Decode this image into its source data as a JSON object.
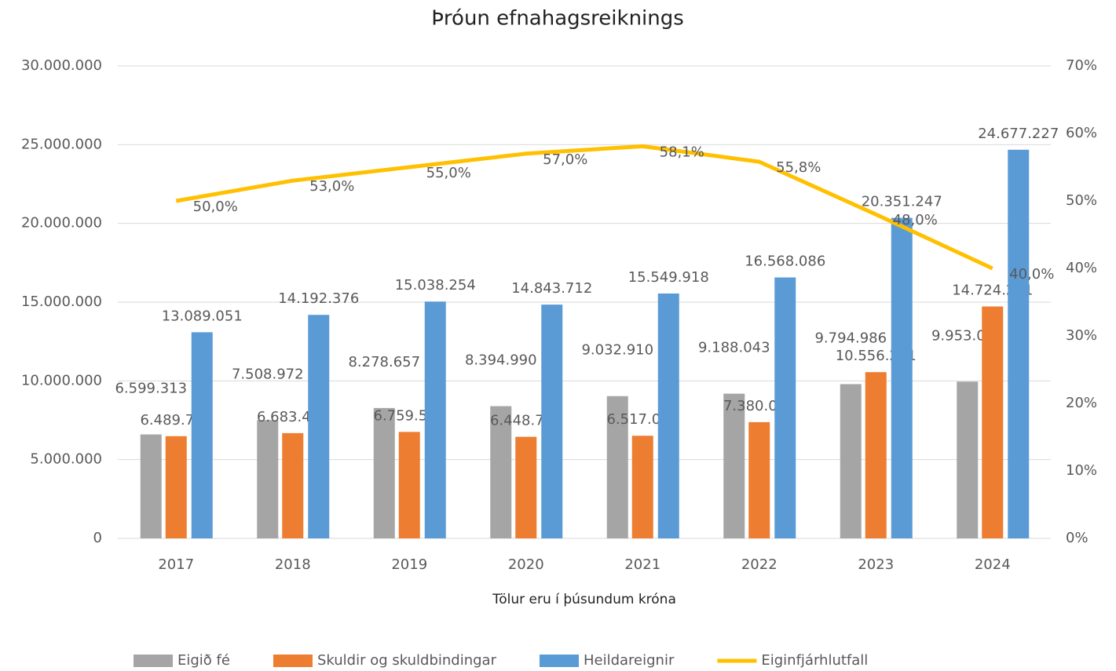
{
  "chart_data": {
    "type": "bar",
    "title": "Þróun efnahagsreiknings",
    "x_label": "Tölur eru í þúsundum króna",
    "categories": [
      "2017",
      "2018",
      "2019",
      "2020",
      "2021",
      "2022",
      "2023",
      "2024"
    ],
    "series": [
      {
        "name": "Eigið fé",
        "type": "bar",
        "color": "#a5a5a5",
        "values": [
          6599313,
          7508972,
          8278657,
          8394990,
          9032910,
          9188043,
          9794986,
          9953006
        ],
        "value_labels": [
          "6.599.313",
          "7.508.972",
          "8.278.657",
          "8.394.990",
          "9.032.910",
          "9.188.043",
          "9.794.986",
          "9.953.006"
        ]
      },
      {
        "name": "Skuldir og skuldbindingar",
        "type": "bar",
        "color": "#ed7d31",
        "values": [
          6489739,
          6683404,
          6759597,
          6448722,
          6517009,
          7380043,
          10556261,
          14724221
        ],
        "value_labels": [
          "6.489.739",
          "6.683.404",
          "6.759.597",
          "6.448.722",
          "6.517.009",
          "7.380.043",
          "10.556.261",
          "14.724.221"
        ]
      },
      {
        "name": "Heildareignir",
        "type": "bar",
        "color": "#5b9bd5",
        "values": [
          13089051,
          14192376,
          15038254,
          14843712,
          15549918,
          16568086,
          20351247,
          24677227
        ],
        "value_labels": [
          "13.089.051",
          "14.192.376",
          "15.038.254",
          "14.843.712",
          "15.549.918",
          "16.568.086",
          "20.351.247",
          "24.677.227"
        ]
      },
      {
        "name": "Eiginfjárhlutfall",
        "type": "line",
        "axis": "y2",
        "color": "#ffc000",
        "values": [
          50.0,
          53.0,
          55.0,
          57.0,
          58.1,
          55.8,
          48.0,
          40.0
        ],
        "value_labels": [
          "50,0%",
          "53,0%",
          "55,0%",
          "57,0%",
          "58,1%",
          "55,8%",
          "48,0%",
          "40,0%"
        ]
      }
    ],
    "ylim": [
      0,
      30000000
    ],
    "yticks": [
      0,
      {
        "value": 5000000,
        "label": "5.000.000"
      },
      {
        "value": 10000000,
        "label": "10.000.000"
      },
      {
        "value": 15000000,
        "label": "15.000.000"
      },
      {
        "value": 20000000,
        "label": "20.000.000"
      },
      {
        "value": 25000000,
        "label": "25.000.000"
      },
      {
        "value": 30000000,
        "label": "30.000.000"
      }
    ],
    "y2lim": [
      0,
      70
    ],
    "y2ticks": [
      {
        "value": 0,
        "label": "0%"
      },
      {
        "value": 10,
        "label": "10%"
      },
      {
        "value": 20,
        "label": "20%"
      },
      {
        "value": 30,
        "label": "30%"
      },
      {
        "value": 40,
        "label": "40%"
      },
      {
        "value": 50,
        "label": "50%"
      },
      {
        "value": 60,
        "label": "60%"
      },
      {
        "value": 70,
        "label": "70%"
      }
    ],
    "grid": true,
    "legend": "bottom"
  }
}
